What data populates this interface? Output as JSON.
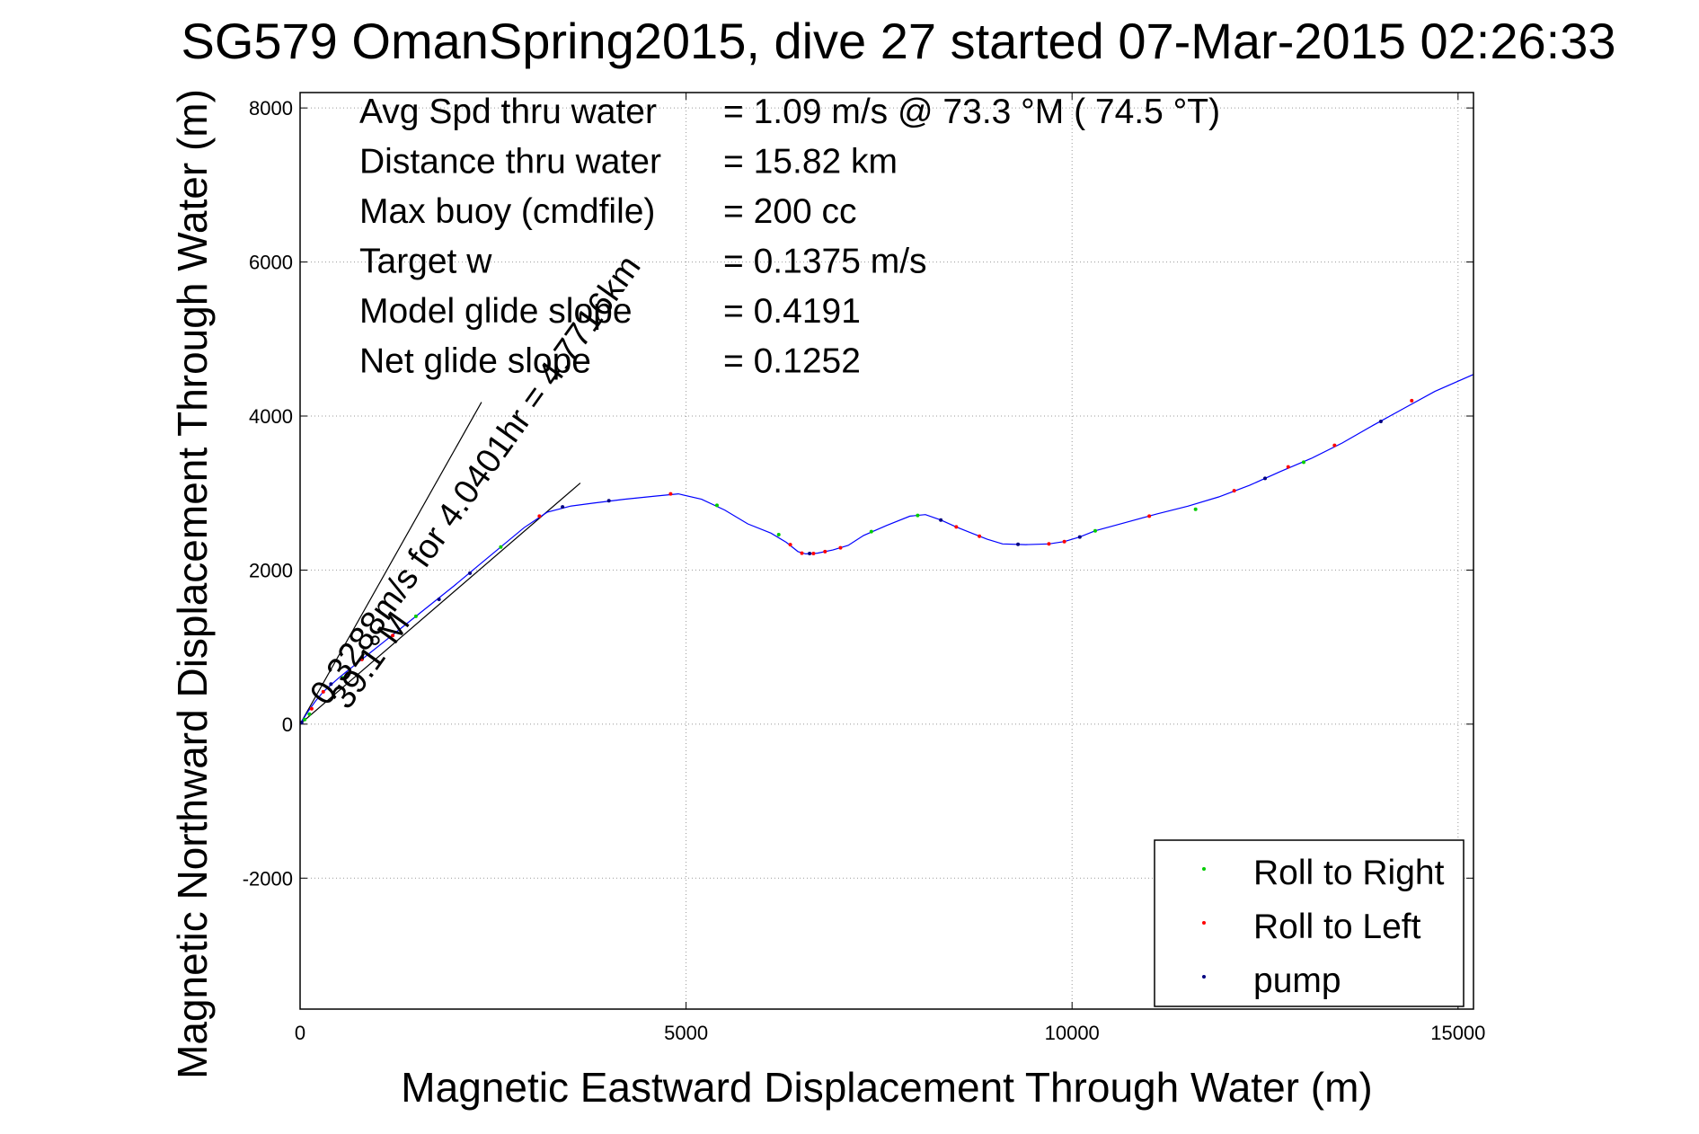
{
  "chart_data": {
    "type": "line",
    "title": "SG579 OmanSpring2015, dive 27 started 07-Mar-2015 02:26:33",
    "xlabel": "Magnetic Eastward Displacement Through Water (m)",
    "ylabel": "Magnetic Northward Displacement Through Water (m)",
    "xlim": [
      0,
      15200
    ],
    "ylim": [
      -3700,
      8200
    ],
    "xticks": [
      0,
      5000,
      10000,
      15000
    ],
    "yticks": [
      -2000,
      0,
      2000,
      4000,
      6000,
      8000
    ],
    "grid": true,
    "legend_position": "bottom-right",
    "track": {
      "color": "#0000ff",
      "x": [
        0,
        50,
        100,
        200,
        300,
        500,
        700,
        900,
        1100,
        1300,
        1500,
        1700,
        2000,
        2300,
        2600,
        2900,
        3200,
        3500,
        3800,
        4200,
        4600,
        4900,
        5200,
        5500,
        5800,
        6100,
        6300,
        6450,
        6550,
        6700,
        6900,
        7100,
        7300,
        7600,
        7900,
        8100,
        8300,
        8500,
        8700,
        8900,
        9100,
        9400,
        9700,
        9900,
        10100,
        10300,
        10700,
        11100,
        11500,
        11900,
        12300,
        12700,
        13100,
        13500,
        13900,
        14300,
        14700,
        15200
      ],
      "y": [
        0,
        80,
        160,
        300,
        420,
        600,
        760,
        920,
        1080,
        1240,
        1400,
        1560,
        1800,
        2050,
        2300,
        2550,
        2750,
        2830,
        2870,
        2920,
        2960,
        2990,
        2920,
        2780,
        2600,
        2480,
        2360,
        2240,
        2210,
        2220,
        2260,
        2320,
        2450,
        2580,
        2700,
        2720,
        2650,
        2560,
        2480,
        2400,
        2340,
        2330,
        2340,
        2370,
        2430,
        2510,
        2620,
        2730,
        2830,
        2950,
        3100,
        3280,
        3450,
        3650,
        3880,
        4100,
        4320,
        4540
      ]
    },
    "series": [
      {
        "name": "Roll to Right",
        "color": "#00cc00",
        "x": [
          60,
          120,
          550,
          1500,
          2600,
          5400,
          6200,
          7400,
          8000,
          10300,
          11600,
          13000
        ],
        "y": [
          60,
          130,
          600,
          1400,
          2300,
          2840,
          2460,
          2500,
          2710,
          2510,
          2790,
          3400
        ]
      },
      {
        "name": "Roll to Left",
        "color": "#ff0000",
        "x": [
          150,
          300,
          800,
          1200,
          3100,
          4800,
          6350,
          6500,
          6650,
          6800,
          7000,
          8500,
          8800,
          9700,
          9900,
          11000,
          12100,
          12800,
          13400,
          14400
        ],
        "y": [
          200,
          420,
          840,
          1150,
          2700,
          2990,
          2330,
          2220,
          2215,
          2240,
          2290,
          2560,
          2440,
          2340,
          2370,
          2700,
          3030,
          3340,
          3620,
          4200
        ]
      },
      {
        "name": "pump",
        "color": "#000080",
        "x": [
          20,
          400,
          1800,
          2200,
          3400,
          4000,
          6600,
          8300,
          9300,
          10100,
          12500,
          14000
        ],
        "y": [
          20,
          520,
          1620,
          1960,
          2820,
          2900,
          2215,
          2650,
          2335,
          2430,
          3190,
          3930
        ]
      }
    ],
    "reference_lines": [
      {
        "x": [
          0,
          2350
        ],
        "y": [
          0,
          4180
        ]
      },
      {
        "x": [
          0,
          3630
        ],
        "y": [
          0,
          3130
        ]
      }
    ],
    "annotations": [
      {
        "text": "0.3288m/s for 4.0401hr = 4.7716km",
        "x": 350,
        "y": 220,
        "angle_deg": -54.5
      },
      {
        "text": "39.1°M",
        "x": 620,
        "y": 170,
        "angle_deg": -54.5
      }
    ],
    "stats": [
      {
        "label": "Avg Spd thru water",
        "value": "=  1.09 m/s @  73.3 °M ( 74.5 °T)"
      },
      {
        "label": "Distance thru water",
        "value": "= 15.82 km"
      },
      {
        "label": "Max buoy (cmdfile)",
        "value": "= 200 cc"
      },
      {
        "label": "Target w",
        "value": "= 0.1375 m/s"
      },
      {
        "label": "Model glide slope",
        "value": "= 0.4191"
      },
      {
        "label": "Net glide slope",
        "value": "= 0.1252"
      }
    ]
  }
}
